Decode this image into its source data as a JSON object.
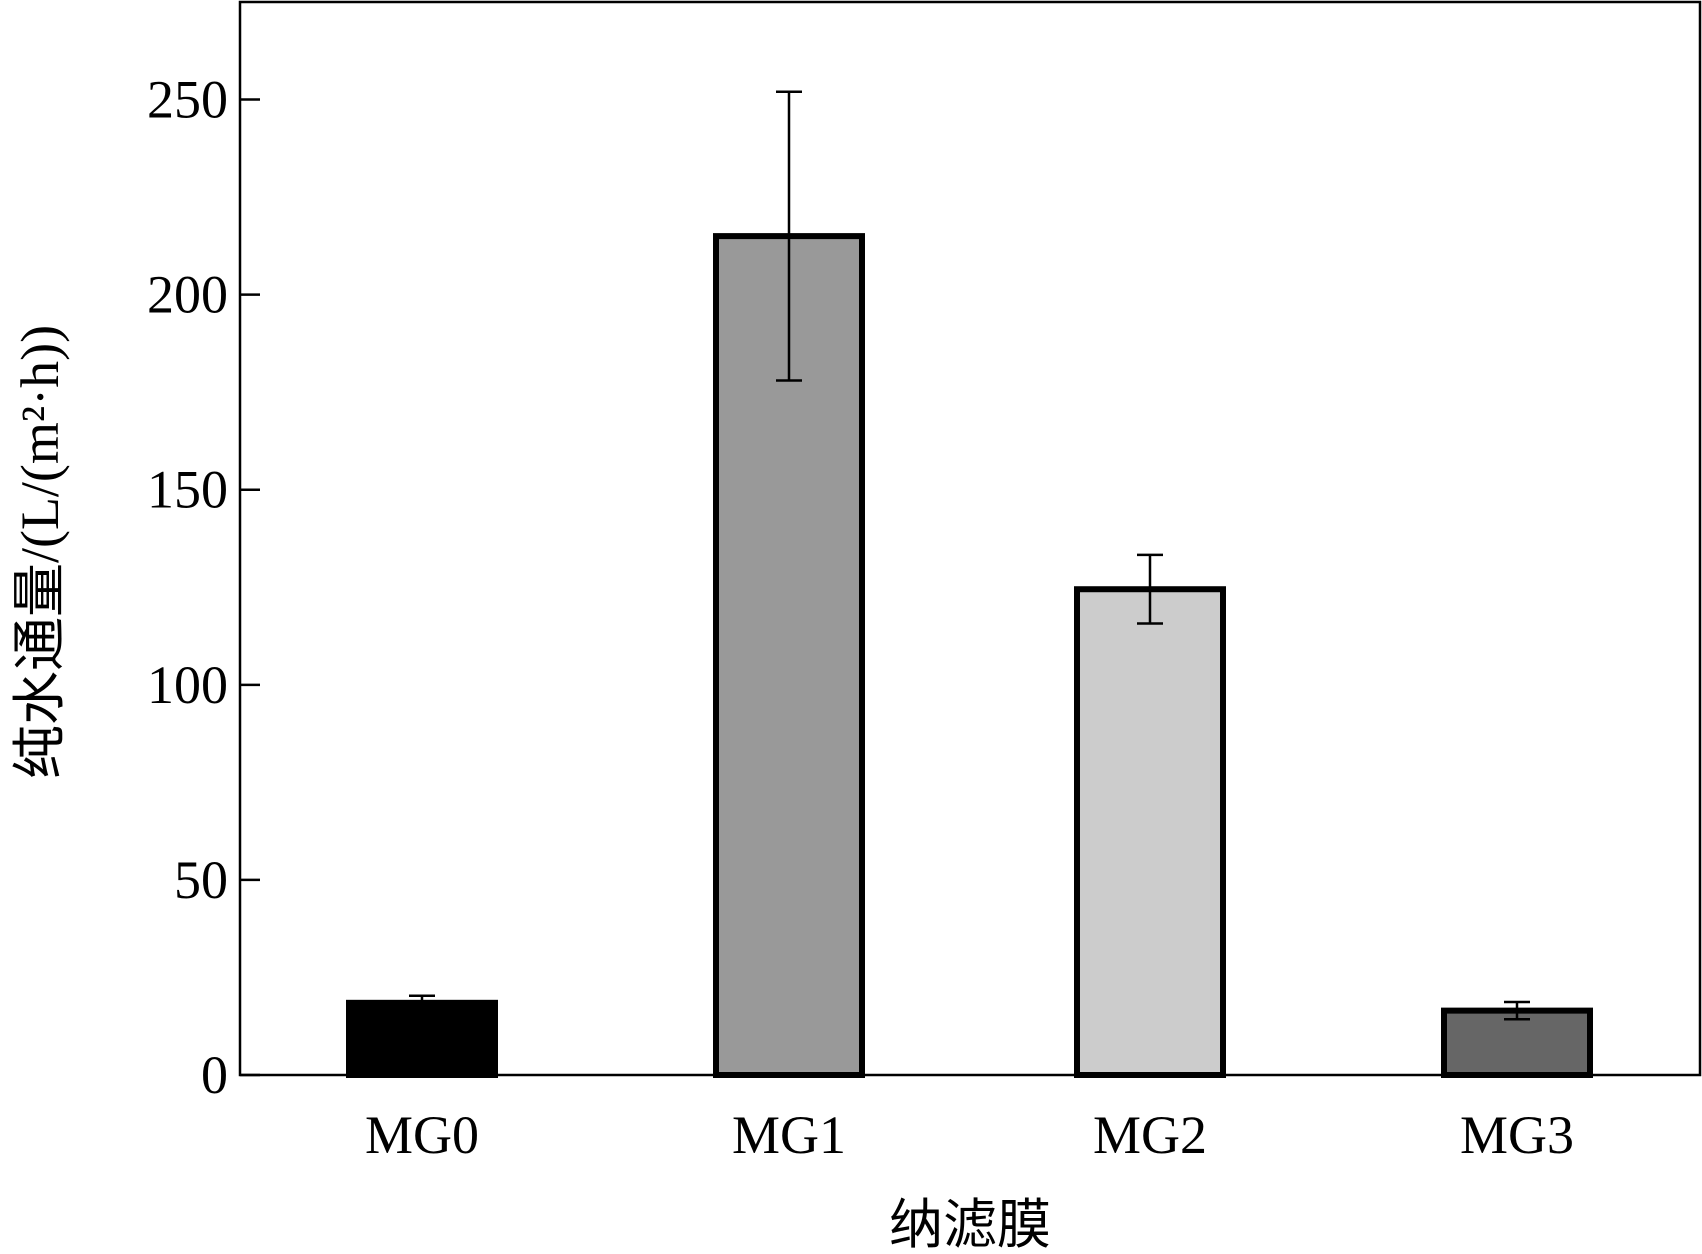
{
  "chart_data": {
    "type": "bar",
    "categories": [
      "MG0",
      "MG1",
      "MG2",
      "MG3"
    ],
    "values": [
      18.5,
      215,
      124.5,
      16.5
    ],
    "errors": [
      1.8,
      37,
      8.8,
      2.2
    ],
    "bar_colors": [
      "#000000",
      "#999999",
      "#cccccc",
      "#666666"
    ],
    "bar_edge_color": "#000000",
    "ylim": [
      0,
      275
    ],
    "yticks": [
      0,
      50,
      100,
      150,
      200,
      250
    ],
    "xlabel": "纳滤膜",
    "ylabel": "纯水通量/(L/(m²·h))",
    "title": "",
    "grid": false,
    "legend": "none"
  }
}
